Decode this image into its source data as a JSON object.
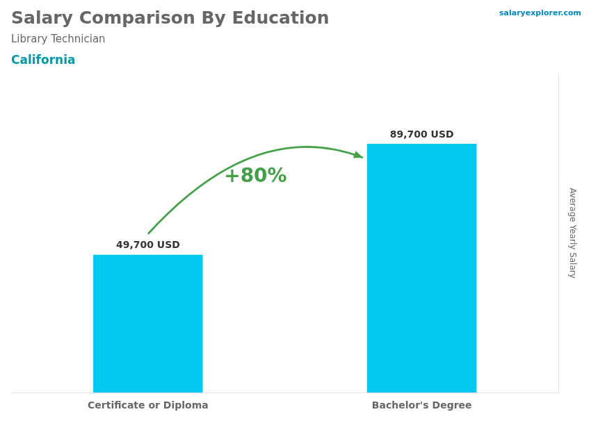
{
  "chart_data": {
    "type": "bar",
    "title": "Salary Comparison By Education",
    "subtitle": "Library Technician",
    "annotations": [
      "California",
      "salaryexplorer.com",
      "+80%"
    ],
    "y_label": "Average Yearly Salary",
    "categories": [
      "Certificate or Diploma",
      "Bachelor's Degree"
    ],
    "values": [
      49700,
      89700
    ],
    "value_labels": [
      "49,700 USD",
      "89,700 USD"
    ],
    "data_labels": true,
    "color": "#00C8F0",
    "ylim": [
      0,
      115000
    ],
    "tick_labels": "x",
    "grid": false
  }
}
